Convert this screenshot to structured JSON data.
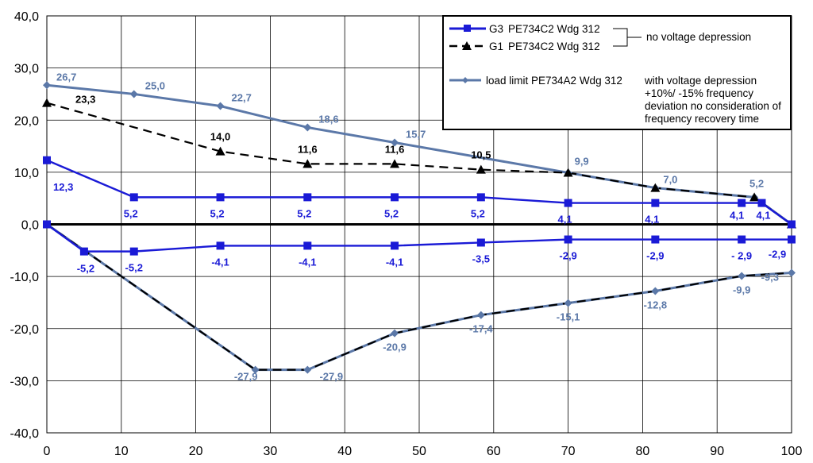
{
  "chart_data": {
    "type": "line",
    "xlim": [
      0,
      100
    ],
    "ylim": [
      -40,
      40
    ],
    "x_ticks": [
      "0",
      "10",
      "20",
      "30",
      "40",
      "50",
      "60",
      "70",
      "80",
      "90",
      "100"
    ],
    "y_ticks": [
      "40,0",
      "30,0",
      "20,0",
      "10,0",
      "0,0",
      "-10,0",
      "-20,0",
      "-30,0",
      "-40,0"
    ],
    "grid": true,
    "legend_position": "top-right",
    "colors": {
      "g3": "#1a1ad6",
      "g1": "#000000",
      "limit": "#5b78a8"
    },
    "series": [
      {
        "name": "G3",
        "description": "PE734C2 Wdg 312",
        "color": "#1a1ad6",
        "points": [
          [
            0,
            12.3
          ],
          [
            11.7,
            5.2
          ],
          [
            23.3,
            5.2
          ],
          [
            35,
            5.2
          ],
          [
            46.7,
            5.2
          ],
          [
            58.3,
            5.2
          ],
          [
            70,
            4.1
          ],
          [
            81.7,
            4.1
          ],
          [
            93.3,
            4.1
          ],
          [
            96,
            4.1
          ],
          [
            100,
            0
          ]
        ],
        "labels": [
          {
            "x": 0,
            "y": 12.3,
            "text": "12,3"
          },
          {
            "x": 11.7,
            "y": 5.2,
            "text": "5,2"
          },
          {
            "x": 23.3,
            "y": 5.2,
            "text": "5,2"
          },
          {
            "x": 35,
            "y": 5.2,
            "text": "5,2"
          },
          {
            "x": 46.7,
            "y": 5.2,
            "text": "5,2"
          },
          {
            "x": 58.3,
            "y": 5.2,
            "text": "5,2"
          },
          {
            "x": 70,
            "y": 4.1,
            "text": "4,1"
          },
          {
            "x": 81.7,
            "y": 4.1,
            "text": "4,1"
          },
          {
            "x": 93.3,
            "y": 4.1,
            "text": "4,1"
          },
          {
            "x": 96,
            "y": 4.1,
            "text": "4,1"
          }
        ]
      },
      {
        "name": "G3 (negative)",
        "color": "#1a1ad6",
        "points": [
          [
            0,
            0
          ],
          [
            5,
            -5.2
          ],
          [
            11.7,
            -5.2
          ],
          [
            23.3,
            -4.1
          ],
          [
            35,
            -4.1
          ],
          [
            46.7,
            -4.1
          ],
          [
            58.3,
            -3.5
          ],
          [
            70,
            -2.9
          ],
          [
            81.7,
            -2.9
          ],
          [
            93.3,
            -2.9
          ],
          [
            100,
            -2.9
          ]
        ],
        "labels": [
          {
            "x": 5,
            "y": -5.2,
            "text": "-5,2"
          },
          {
            "x": 11.7,
            "y": -5.2,
            "text": "-5,2"
          },
          {
            "x": 23.3,
            "y": -4.1,
            "text": "-4,1"
          },
          {
            "x": 35,
            "y": -4.1,
            "text": "-4,1"
          },
          {
            "x": 46.7,
            "y": -4.1,
            "text": "-4,1"
          },
          {
            "x": 58.3,
            "y": -3.5,
            "text": "-3,5"
          },
          {
            "x": 70,
            "y": -2.9,
            "text": "-2,9"
          },
          {
            "x": 81.7,
            "y": -2.9,
            "text": "-2,9"
          },
          {
            "x": 93.3,
            "y": -2.9,
            "text": "- 2,9"
          },
          {
            "x": 100,
            "y": -2.9,
            "text": "-2,9"
          }
        ]
      },
      {
        "name": "G1",
        "description": "PE734C2 Wdg 312",
        "color": "#000000",
        "points": [
          [
            0,
            23.3
          ],
          [
            23.3,
            14.0
          ],
          [
            35,
            11.6
          ],
          [
            46.7,
            11.6
          ],
          [
            58.3,
            10.5
          ],
          [
            70,
            9.9
          ],
          [
            81.7,
            7.0
          ],
          [
            95,
            5.2
          ],
          [
            100,
            0
          ]
        ],
        "labels": [
          {
            "x": 0,
            "y": 23.3,
            "text": "23,3"
          },
          {
            "x": 23.3,
            "y": 14.0,
            "text": "14,0"
          },
          {
            "x": 35,
            "y": 11.6,
            "text": "11,6"
          },
          {
            "x": 46.7,
            "y": 11.6,
            "text": "11,6"
          },
          {
            "x": 58.3,
            "y": 10.5,
            "text": "10,5"
          }
        ]
      },
      {
        "name": "G1 (negative)",
        "color": "#000000",
        "points": [
          [
            0,
            0
          ],
          [
            28,
            -27.9
          ],
          [
            35,
            -27.9
          ],
          [
            46.7,
            -20.9
          ],
          [
            58.3,
            -17.4
          ],
          [
            70,
            -15.1
          ],
          [
            81.7,
            -12.8
          ],
          [
            93.3,
            -9.9
          ],
          [
            100,
            -9.3
          ]
        ]
      },
      {
        "name": "load limit",
        "description": "load limit PE734A2 Wdg 312",
        "color": "#5b78a8",
        "points": [
          [
            0,
            26.7
          ],
          [
            11.7,
            25.0
          ],
          [
            23.3,
            22.7
          ],
          [
            35,
            18.6
          ],
          [
            46.7,
            15.7
          ],
          [
            70,
            9.9
          ],
          [
            81.7,
            7.0
          ],
          [
            95,
            5.2
          ],
          [
            100,
            0
          ]
        ],
        "labels": [
          {
            "x": 0,
            "y": 26.7,
            "text": "26,7"
          },
          {
            "x": 11.7,
            "y": 25.0,
            "text": "25,0"
          },
          {
            "x": 23.3,
            "y": 22.7,
            "text": "22,7"
          },
          {
            "x": 35,
            "y": 18.6,
            "text": "18,6"
          },
          {
            "x": 46.7,
            "y": 15.7,
            "text": "15,7"
          },
          {
            "x": 70,
            "y": 9.9,
            "text": "9,9"
          },
          {
            "x": 81.7,
            "y": 7.0,
            "text": "7,0"
          },
          {
            "x": 95,
            "y": 5.2,
            "text": "5,2"
          }
        ]
      },
      {
        "name": "load limit (negative)",
        "color": "#5b78a8",
        "points": [
          [
            0,
            0
          ],
          [
            28,
            -27.9
          ],
          [
            35,
            -27.9
          ],
          [
            46.7,
            -20.9
          ],
          [
            58.3,
            -17.4
          ],
          [
            70,
            -15.1
          ],
          [
            81.7,
            -12.8
          ],
          [
            93.3,
            -9.9
          ],
          [
            100,
            -9.3
          ]
        ],
        "labels": [
          {
            "x": 28,
            "y": -27.9,
            "text": "-27,9"
          },
          {
            "x": 35,
            "y": -27.9,
            "text": "-27,9"
          },
          {
            "x": 46.7,
            "y": -20.9,
            "text": "-20,9"
          },
          {
            "x": 58.3,
            "y": -17.4,
            "text": "-17,4"
          },
          {
            "x": 70,
            "y": -15.1,
            "text": "-15,1"
          },
          {
            "x": 81.7,
            "y": -12.8,
            "text": "-12,8"
          },
          {
            "x": 93.3,
            "y": -9.9,
            "text": "-9,9"
          },
          {
            "x": 100,
            "y": -9.3,
            "text": "-9,3"
          }
        ]
      }
    ],
    "legend": {
      "g3_code": "G3",
      "g3_text": "PE734C2 Wdg 312",
      "g1_code": "G1",
      "g1_text": "PE734C2 Wdg 312",
      "no_depression": "no voltage depression",
      "limit_text": "load limit PE734A2 Wdg 312",
      "with_depression": [
        "with voltage depression",
        "+10%/ -15% frequency",
        "deviation no consideration of",
        "frequency recovery time"
      ]
    }
  }
}
